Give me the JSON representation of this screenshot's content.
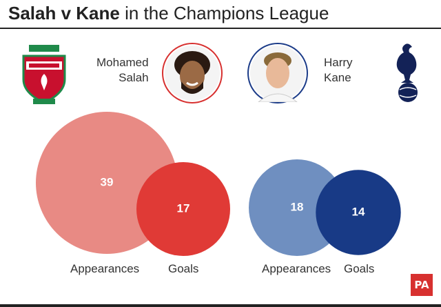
{
  "header": {
    "title_bold": "Salah v Kane",
    "title_rest": " in the Champions League"
  },
  "players": [
    {
      "first": "Mohamed",
      "last": "Salah",
      "club_icon": "liverpool-crest-icon"
    },
    {
      "first": "Harry",
      "last": "Kane",
      "club_icon": "tottenham-cockerel-icon"
    }
  ],
  "badge": {
    "text": "PA"
  },
  "colors": {
    "salah_appearances": "#e88a84",
    "salah_goals": "#e03a36",
    "kane_appearances": "#6f8fc0",
    "kane_goals": "#183a86",
    "salah_ring": "#d7302f",
    "kane_ring": "#1b3b88"
  },
  "chart_data": {
    "type": "bubble",
    "categories": [
      "Appearances",
      "Goals"
    ],
    "series": [
      {
        "name": "Salah",
        "values": [
          39,
          17
        ]
      },
      {
        "name": "Kane",
        "values": [
          18,
          14
        ]
      }
    ]
  },
  "labels": {
    "salah_appearances": "Appearances",
    "salah_goals": "Goals",
    "kane_appearances": "Appearances",
    "kane_goals": "Goals"
  }
}
